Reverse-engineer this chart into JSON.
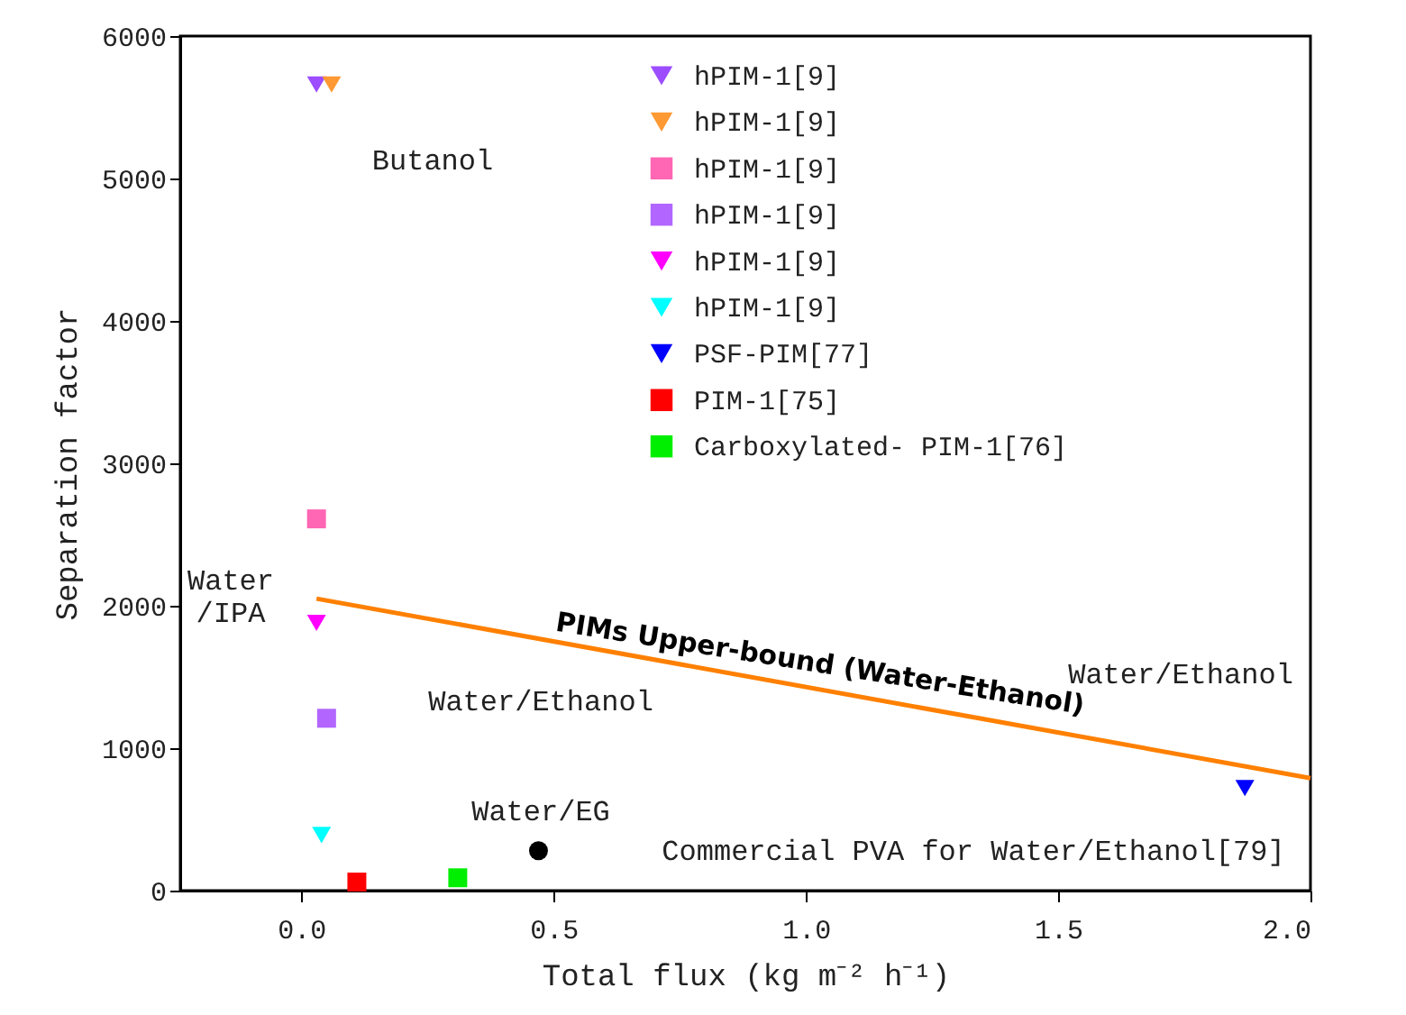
{
  "chart_data": {
    "type": "scatter",
    "xlabel": "Total flux (kg m⁻² h⁻¹)",
    "ylabel": "Separation factor",
    "xlim": [
      -0.24,
      2.0
    ],
    "ylim": [
      0,
      6000
    ],
    "xticks": [
      {
        "value": 0,
        "label": "0.0"
      },
      {
        "value": 0.5,
        "label": "0.5"
      },
      {
        "value": 1,
        "label": "1.0"
      },
      {
        "value": 1.5,
        "label": "1.5"
      },
      {
        "value": 2,
        "label": "2.0"
      }
    ],
    "yticks": [
      0,
      1000,
      2000,
      3000,
      4000,
      5000,
      6000
    ],
    "grid": false,
    "legend": "top right",
    "series": [
      {
        "name": "hPIM-1[9]",
        "color": "#9b4dff",
        "marker": "triangle",
        "x": [
          0.03
        ],
        "values": [
          5660
        ]
      },
      {
        "name": "hPIM-1[9]",
        "color": "#ff9933",
        "marker": "triangle",
        "x": [
          0.06
        ],
        "values": [
          5660
        ]
      },
      {
        "name": "hPIM-1[9]",
        "color": "#ff66b3",
        "marker": "square",
        "x": [
          0.03
        ],
        "values": [
          2610
        ]
      },
      {
        "name": "hPIM-1[9]",
        "color": "#b266ff",
        "marker": "square",
        "x": [
          0.05
        ],
        "values": [
          1210
        ]
      },
      {
        "name": "hPIM-1[9]",
        "color": "#ff00ff",
        "marker": "triangle",
        "x": [
          0.03
        ],
        "values": [
          1880
        ]
      },
      {
        "name": "hPIM-1[9]",
        "color": "#00ffff",
        "marker": "triangle",
        "x": [
          0.04
        ],
        "values": [
          390
        ]
      },
      {
        "name": "PSF-PIM[77]",
        "color": "#0000ff",
        "marker": "triangle",
        "x": [
          1.87
        ],
        "values": [
          720
        ]
      },
      {
        "name": "PIM-1[75]",
        "color": "#ff0000",
        "marker": "square",
        "x": [
          0.11
        ],
        "values": [
          60
        ]
      },
      {
        "name": "Carboxylated- PIM-1[76]",
        "color": "#00ee00",
        "marker": "square",
        "x": [
          0.31
        ],
        "values": [
          90
        ]
      },
      {
        "color": "#000000",
        "marker": "circle",
        "x": [
          0.47
        ],
        "values": [
          280
        ]
      },
      {
        "type": "line",
        "color": "#ff8000",
        "line_style": "solid",
        "marker": "none",
        "x": [
          0.03,
          2.0
        ],
        "values": [
          2050,
          790
        ]
      }
    ],
    "annotations": [
      "Butanol",
      "Water\n/IPA",
      "Water/Ethanol",
      "Water/EG",
      "Commercial PVA for Water/Ethanol[79]",
      "Water/Ethanol",
      "PIMs Upper-bound (Water-Ethanol)"
    ]
  }
}
